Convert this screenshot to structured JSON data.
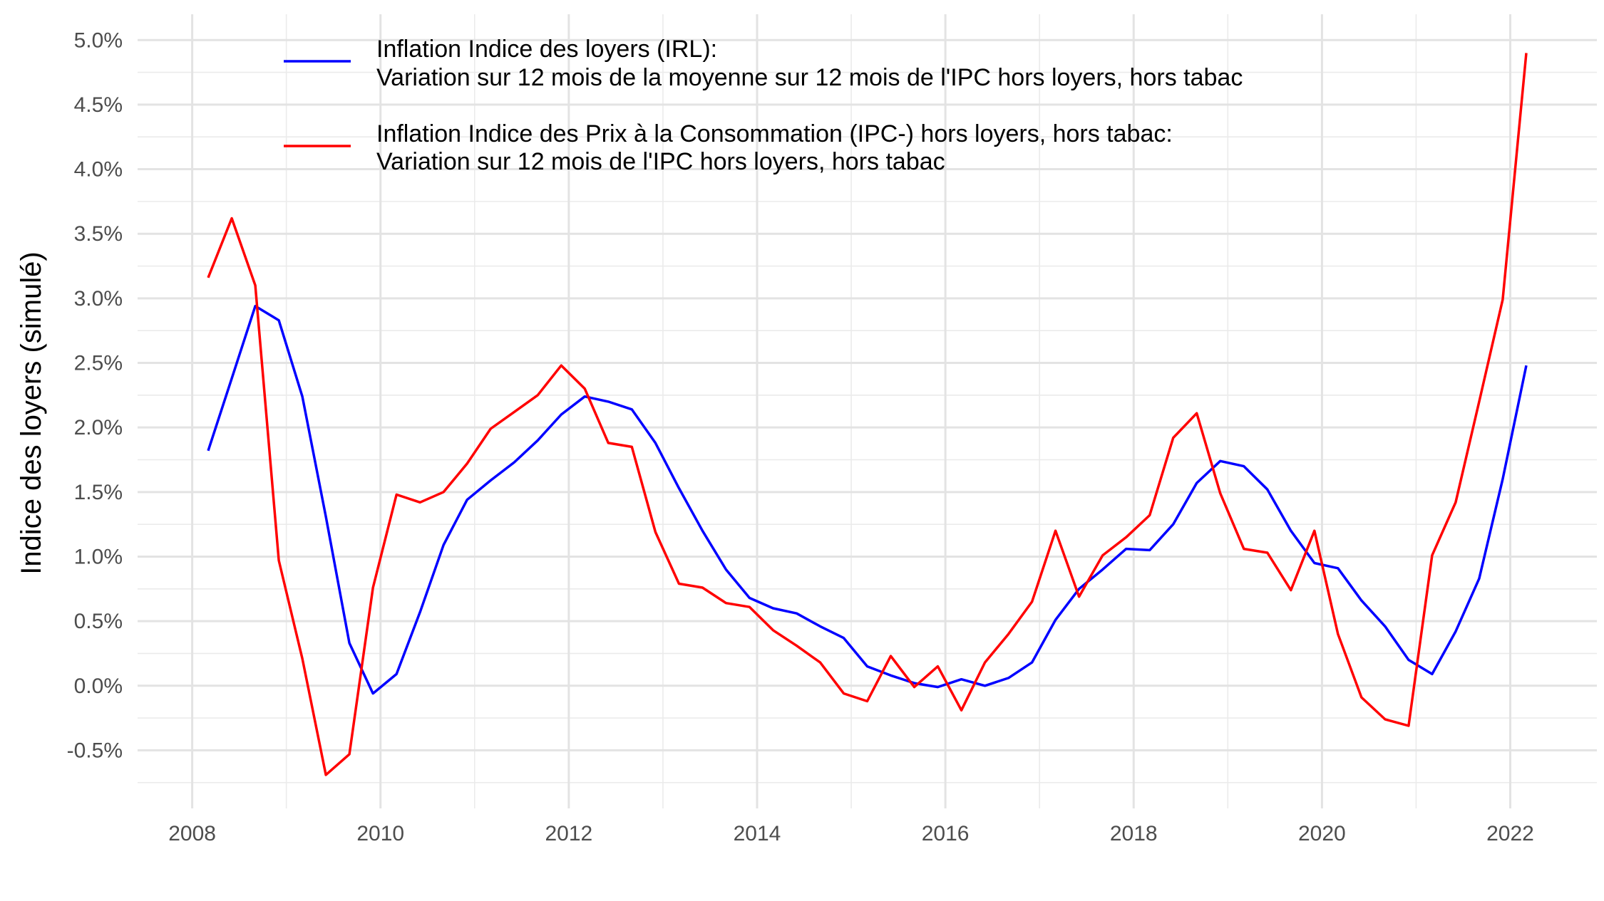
{
  "chart_data": {
    "type": "line",
    "title": "",
    "xlabel": "",
    "ylabel": "Indice des loyers (simulé)",
    "xlim": [
      2007.42,
      2022.92
    ],
    "ylim": [
      -0.95,
      5.2
    ],
    "grid": true,
    "legend_position": "top-left",
    "x_ticks": [
      2008,
      2010,
      2012,
      2014,
      2016,
      2018,
      2020,
      2022
    ],
    "x_tick_labels": [
      "2008",
      "2010",
      "2012",
      "2014",
      "2016",
      "2018",
      "2020",
      "2022"
    ],
    "y_ticks": [
      -0.5,
      0,
      0.5,
      1,
      1.5,
      2,
      2.5,
      3,
      3.5,
      4,
      4.5,
      5
    ],
    "y_tick_labels": [
      "-0.5%",
      "0.0%",
      "0.5%",
      "1.0%",
      "1.5%",
      "2.0%",
      "2.5%",
      "3.0%",
      "3.5%",
      "4.0%",
      "4.5%",
      "5.0%"
    ],
    "x": [
      2008.17,
      2008.42,
      2008.67,
      2008.92,
      2009.17,
      2009.42,
      2009.67,
      2009.92,
      2010.17,
      2010.42,
      2010.67,
      2010.92,
      2011.17,
      2011.42,
      2011.67,
      2011.92,
      2012.17,
      2012.42,
      2012.67,
      2012.92,
      2013.17,
      2013.42,
      2013.67,
      2013.92,
      2014.17,
      2014.42,
      2014.67,
      2014.92,
      2015.17,
      2015.42,
      2015.67,
      2015.92,
      2016.17,
      2016.42,
      2016.67,
      2016.92,
      2017.17,
      2017.42,
      2017.67,
      2017.92,
      2018.17,
      2018.42,
      2018.67,
      2018.92,
      2019.17,
      2019.42,
      2019.67,
      2019.92,
      2020.17,
      2020.42,
      2020.67,
      2020.92,
      2021.17,
      2021.42,
      2021.67,
      2021.92,
      2022.17
    ],
    "series": [
      {
        "name": "Inflation Indice des loyers (IRL):\nVariation sur 12 mois de la moyenne sur 12 mois de l'IPC hors loyers, hors tabac",
        "color": "#0000ff",
        "values": [
          1.82,
          2.38,
          2.94,
          2.83,
          2.24,
          1.31,
          0.33,
          -0.06,
          0.09,
          0.57,
          1.09,
          1.44,
          1.59,
          1.73,
          1.9,
          2.1,
          2.24,
          2.2,
          2.14,
          1.88,
          1.53,
          1.2,
          0.9,
          0.68,
          0.6,
          0.56,
          0.46,
          0.37,
          0.15,
          0.08,
          0.02,
          -0.01,
          0.05,
          0.0,
          0.06,
          0.18,
          0.51,
          0.75,
          0.9,
          1.06,
          1.05,
          1.25,
          1.57,
          1.74,
          1.7,
          1.52,
          1.2,
          0.95,
          0.91,
          0.66,
          0.46,
          0.2,
          0.09,
          0.42,
          0.83,
          1.6,
          2.48
        ]
      },
      {
        "name": "Inflation Indice des Prix à la Consommation (IPC-) hors loyers, hors tabac:\nVariation sur 12 mois de l'IPC hors loyers, hors tabac",
        "color": "#ff0000",
        "values": [
          3.16,
          3.62,
          3.1,
          0.97,
          0.21,
          -0.69,
          -0.53,
          0.76,
          1.48,
          1.42,
          1.5,
          1.72,
          1.99,
          2.12,
          2.25,
          2.48,
          2.3,
          1.88,
          1.85,
          1.19,
          0.79,
          0.76,
          0.64,
          0.61,
          0.43,
          0.31,
          0.18,
          -0.06,
          -0.12,
          0.23,
          -0.01,
          0.15,
          -0.19,
          0.18,
          0.4,
          0.65,
          1.2,
          0.69,
          1.01,
          1.15,
          1.32,
          1.92,
          2.11,
          1.49,
          1.06,
          1.03,
          0.74,
          1.2,
          0.4,
          -0.09,
          -0.26,
          -0.31,
          1.01,
          1.42,
          2.2,
          2.99,
          4.9
        ]
      }
    ]
  },
  "legend": [
    {
      "color": "#0000ff",
      "line1": "Inflation Indice des loyers (IRL):",
      "line2": "Variation sur 12 mois de la moyenne sur 12 mois de l'IPC hors loyers, hors tabac"
    },
    {
      "color": "#ff0000",
      "line1": "Inflation Indice des Prix à la Consommation (IPC-) hors loyers, hors tabac:",
      "line2": "Variation sur 12 mois de l'IPC hors loyers, hors tabac"
    }
  ]
}
